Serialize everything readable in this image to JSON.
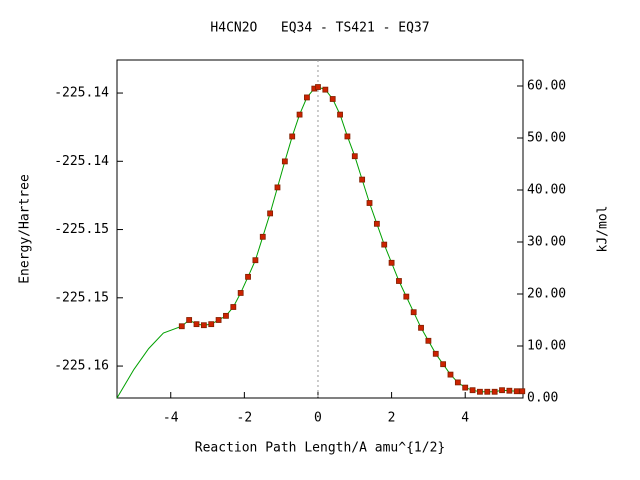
{
  "chart_data": {
    "type": "line",
    "title": "H4CN2O   EQ34 - TS421 - EQ37",
    "xlabel": "Reaction Path Length/A amu^{1/2}",
    "ylabel": "Energy/Hartree",
    "y2label": "kJ/mol",
    "x": [
      -5.46,
      -5.0,
      -4.6,
      -4.2,
      -3.7,
      -3.5,
      -3.3,
      -3.1,
      -2.9,
      -2.7,
      -2.5,
      -2.3,
      -2.1,
      -1.9,
      -1.7,
      -1.5,
      -1.3,
      -1.1,
      -0.9,
      -0.7,
      -0.5,
      -0.3,
      -0.1,
      0,
      0.2,
      0.4,
      0.6,
      0.8,
      1.0,
      1.2,
      1.4,
      1.6,
      1.8,
      2.0,
      2.2,
      2.4,
      2.6,
      2.8,
      3.0,
      3.2,
      3.4,
      3.6,
      3.8,
      4.0,
      4.2,
      4.4,
      4.6,
      4.8,
      5.0,
      5.2,
      5.4,
      5.55
    ],
    "series": [
      {
        "color": "#00a000",
        "axis": "y2",
        "values": [
          0,
          5.5,
          9.5,
          12.5,
          13.8,
          15.0,
          14.2,
          14.0,
          14.2,
          15.0,
          15.8,
          17.5,
          20.2,
          23.3,
          26.5,
          31.0,
          35.5,
          40.5,
          45.5,
          50.3,
          54.5,
          57.8,
          59.5,
          59.8,
          59.3,
          57.5,
          54.5,
          50.3,
          46.5,
          42.0,
          37.5,
          33.5,
          29.5,
          26.0,
          22.5,
          19.5,
          16.5,
          13.5,
          11.0,
          8.5,
          6.5,
          4.5,
          3.0,
          2.0,
          1.5,
          1.2,
          1.2,
          1.2,
          1.5,
          1.4,
          1.3,
          1.3
        ]
      },
      {
        "color": "#cc2200",
        "axis": "y2",
        "values": [
          null,
          null,
          null,
          null,
          13.8,
          15.0,
          14.2,
          14.0,
          14.2,
          15.0,
          15.8,
          17.5,
          20.2,
          23.3,
          26.5,
          31.0,
          35.5,
          40.5,
          45.5,
          50.3,
          54.5,
          57.8,
          59.5,
          59.8,
          59.3,
          57.5,
          54.5,
          50.3,
          46.5,
          42.0,
          37.5,
          33.5,
          29.5,
          26.0,
          22.5,
          19.5,
          16.5,
          13.5,
          11.0,
          8.5,
          6.5,
          4.5,
          3.0,
          2.0,
          1.5,
          1.2,
          1.2,
          1.2,
          1.5,
          1.4,
          1.3,
          1.3
        ]
      }
    ],
    "vlines": [
      0
    ],
    "xlim": [
      -5.46,
      5.57
    ],
    "xticks": [
      -4,
      -2,
      0,
      2,
      4
    ],
    "ylim": [
      -225.15984,
      -225.13508
    ],
    "yticks": [
      {
        "value": -225.1575,
        "label": "-225.16"
      },
      {
        "value": -225.1525,
        "label": "-225.15"
      },
      {
        "value": -225.1475,
        "label": "-225.15"
      },
      {
        "value": -225.1425,
        "label": "-225.14"
      },
      {
        "value": -225.1375,
        "label": "-225.14"
      }
    ],
    "y2lim": [
      0,
      65
    ],
    "y2ticks": [
      {
        "value": 0,
        "label": "0.00"
      },
      {
        "value": 10,
        "label": "10.00"
      },
      {
        "value": 20,
        "label": "20.00"
      },
      {
        "value": 30,
        "label": "30.00"
      },
      {
        "value": 40,
        "label": "40.00"
      },
      {
        "value": 50,
        "label": "50.00"
      },
      {
        "value": 60,
        "label": "60.00"
      }
    ]
  }
}
